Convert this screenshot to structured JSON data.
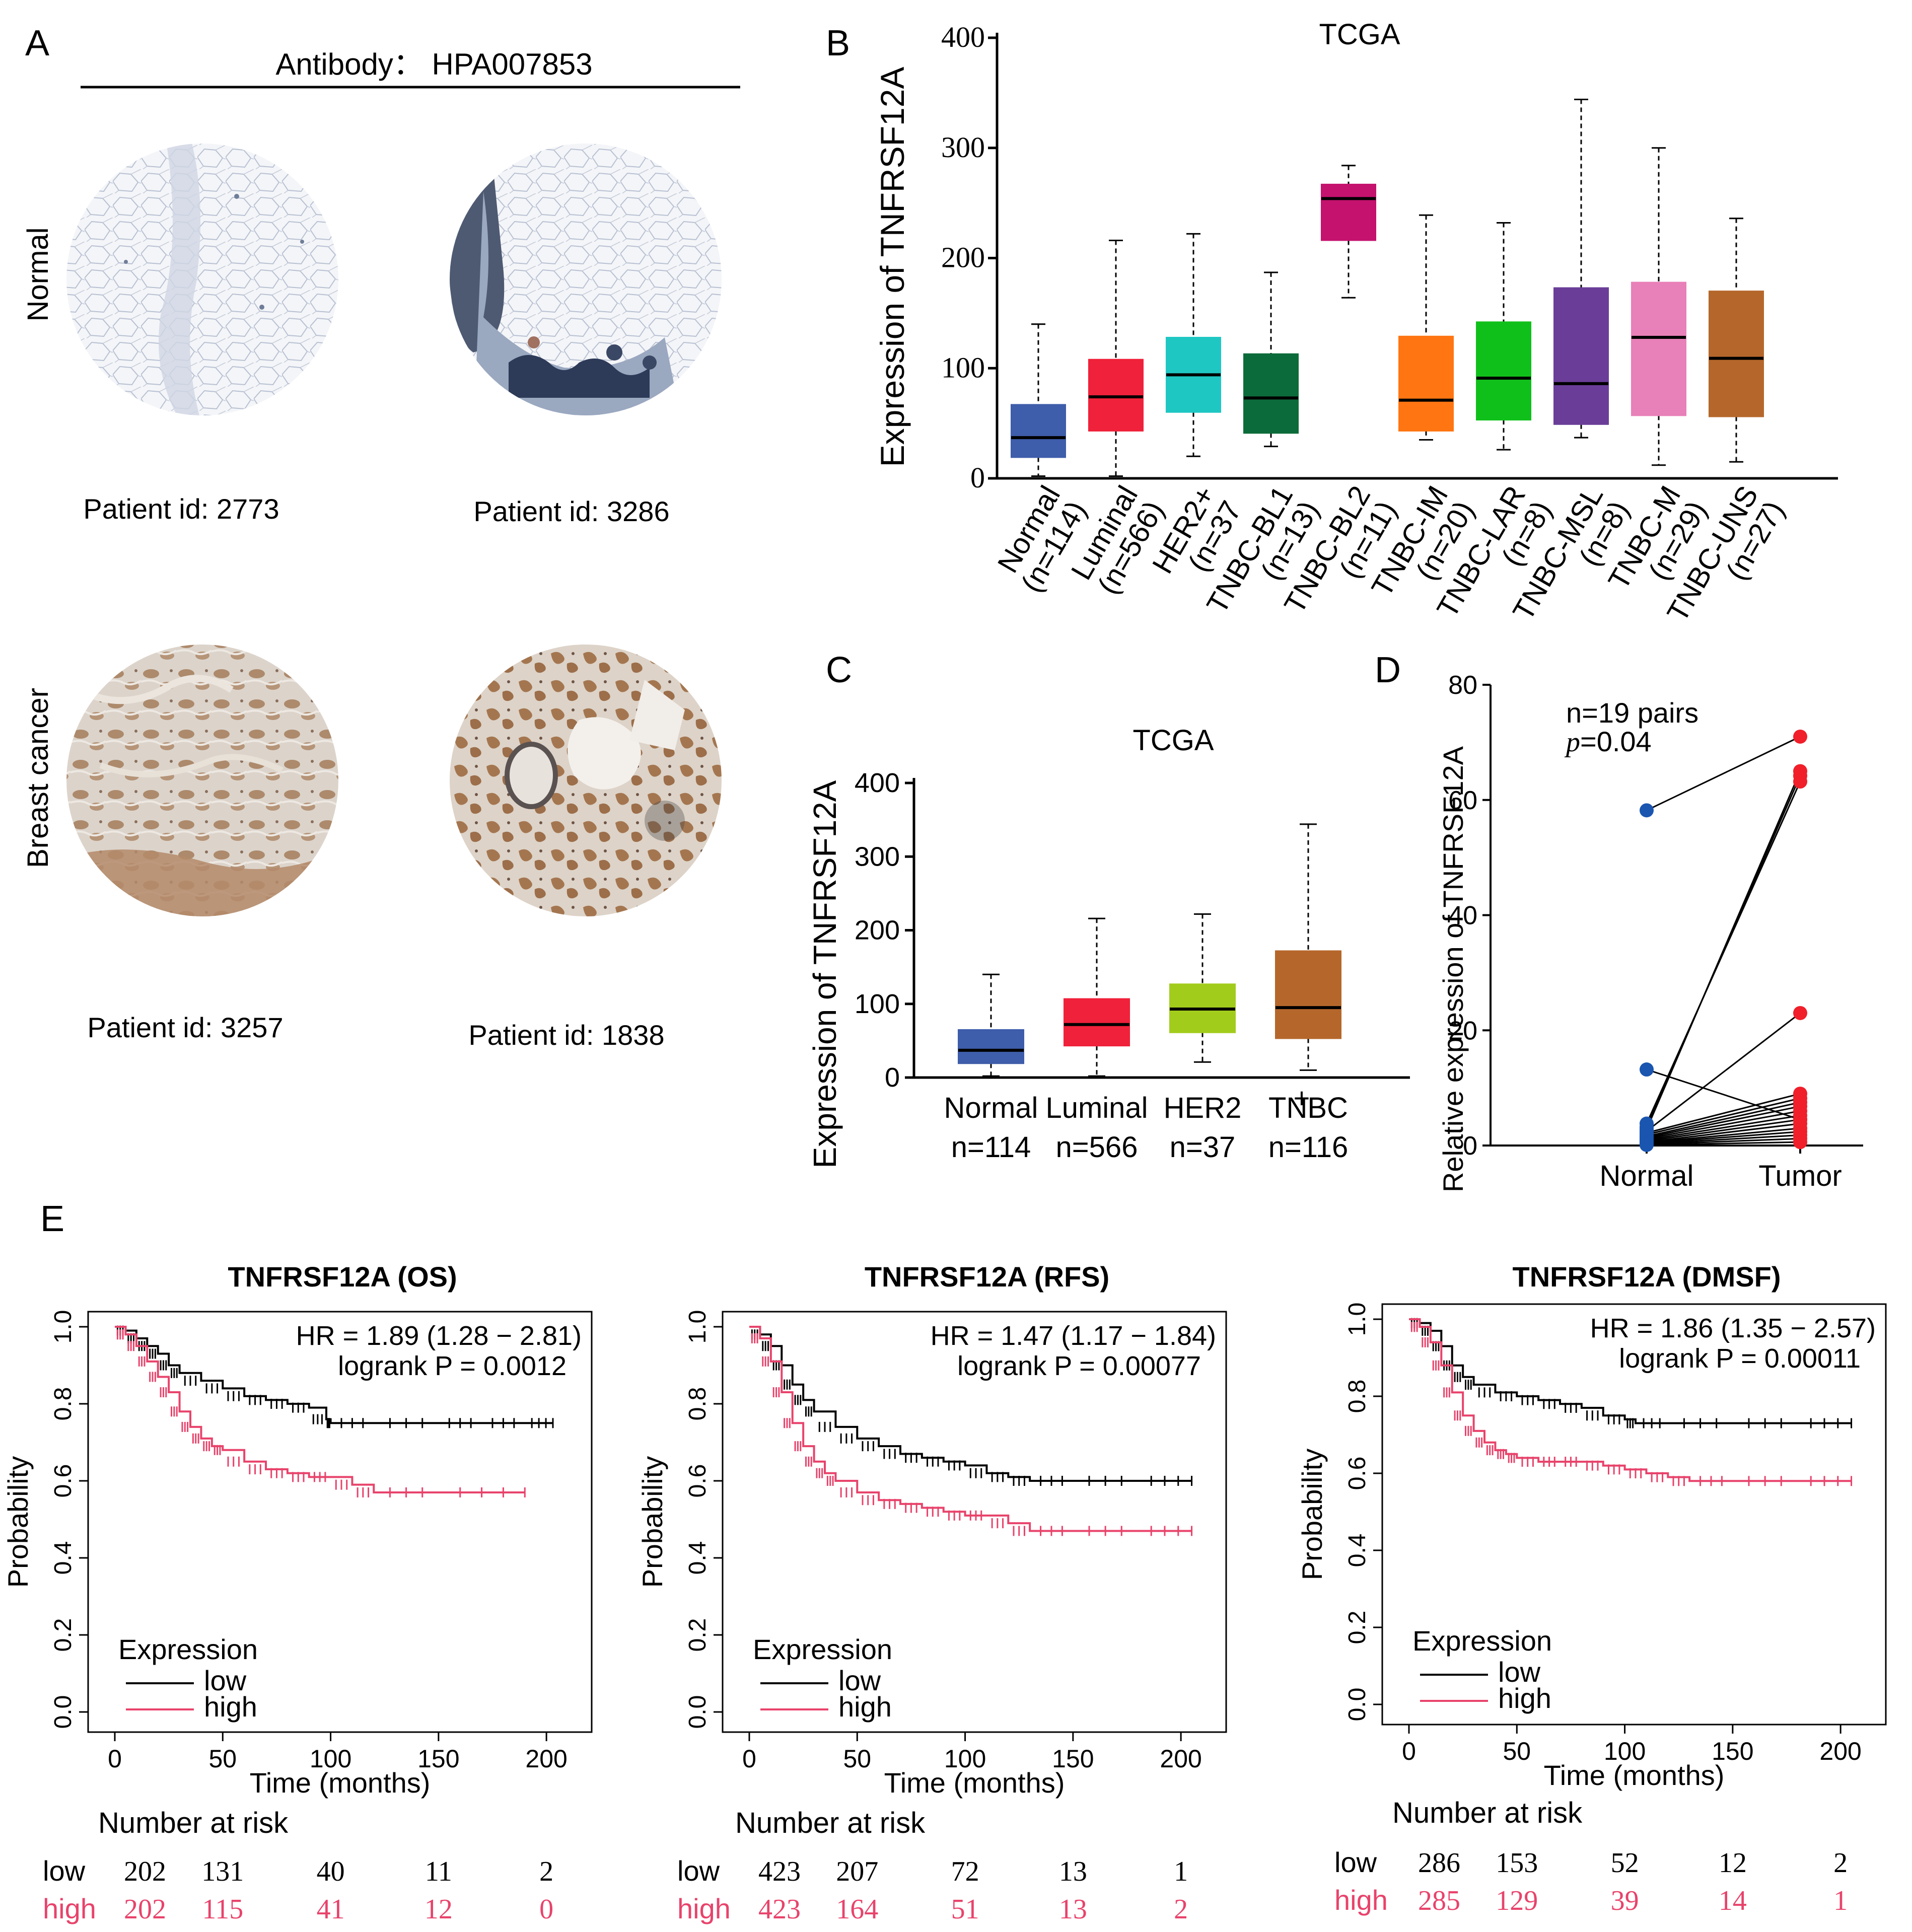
{
  "panels": {
    "A": {
      "label": "A",
      "antibody": "Antibody： HPA007853",
      "rows": [
        "Normal",
        "Breast cancer"
      ],
      "cores": [
        {
          "patient": "Patient id: 2773",
          "tissue": "normal-fat"
        },
        {
          "patient": "Patient id: 3286",
          "tissue": "normal-glands"
        },
        {
          "patient": "Patient id: 3257",
          "tissue": "tumor-1"
        },
        {
          "patient": "Patient id: 1838",
          "tissue": "tumor-2"
        }
      ]
    },
    "E": {
      "label": "E"
    }
  },
  "palette": {
    "normal": "#3E5DAA",
    "luminal": "#F0213A",
    "her2p": "#1FC7C3",
    "bl1": "#0C6B3A",
    "bl2": "#C4126E",
    "im": "#FF7511",
    "lar": "#10C01A",
    "msl": "#6A3E98",
    "m": "#E880B9",
    "uns": "#B5672B",
    "her2": "#A2CC1C",
    "tnbc": "#B5672B",
    "km_high": "#E8436B",
    "km_low": "#000000"
  },
  "chart_data": [
    {
      "id": "B",
      "label": "B",
      "type": "boxplot",
      "title": "TCGA",
      "ylabel": "Expression of  TNFRSF12A",
      "ylim": [
        0,
        400
      ],
      "yticks": [
        0,
        100,
        200,
        300,
        400
      ],
      "categories": [
        "Normal\n(n=114)",
        "Luminal\n(n=566)",
        "HER2+\n(n=37",
        "TNBC-BL1\n(n=13)",
        "TNBC-BL2\n(n=11)",
        "TNBC-IM\n(n=20)",
        "TNBC-LAR\n(n=8)",
        "TNBC-MSL\n(n=8)",
        "TNBC-M\n(n=29)",
        "TNBC-UNS\n(n=27)"
      ],
      "colors": [
        "normal",
        "luminal",
        "her2p",
        "bl1",
        "bl2",
        "im",
        "lar",
        "msl",
        "m",
        "uns"
      ],
      "boxes": [
        {
          "min": 2,
          "q1": 19,
          "median": 37,
          "q3": 67,
          "max": 140
        },
        {
          "min": 2,
          "q1": 43,
          "median": 74,
          "q3": 108,
          "max": 216
        },
        {
          "min": 20,
          "q1": 60,
          "median": 94,
          "q3": 128,
          "max": 222
        },
        {
          "min": 29,
          "q1": 41,
          "median": 73,
          "q3": 113,
          "max": 187
        },
        {
          "min": 164,
          "q1": 216,
          "median": 254,
          "q3": 267,
          "max": 284
        },
        {
          "min": 35,
          "q1": 43,
          "median": 71,
          "q3": 129,
          "max": 239
        },
        {
          "min": 26,
          "q1": 53,
          "median": 91,
          "q3": 142,
          "max": 232
        },
        {
          "min": 37,
          "q1": 49,
          "median": 86,
          "q3": 173,
          "max": 344
        },
        {
          "min": 12,
          "q1": 57,
          "median": 128,
          "q3": 178,
          "max": 300
        },
        {
          "min": 15,
          "q1": 56,
          "median": 109,
          "q3": 170,
          "max": 236
        }
      ]
    },
    {
      "id": "C",
      "label": "C",
      "type": "boxplot",
      "title": "TCGA",
      "ylabel": "Expression of  TNFRSF12A",
      "ylim": [
        0,
        400
      ],
      "yticks": [
        0,
        100,
        200,
        300,
        400
      ],
      "categories": [
        "Normal\nn=114",
        "Luminal\nn=566",
        "HER2\nn=37",
        "TNBC\nn=116"
      ],
      "colors": [
        "normal",
        "luminal",
        "her2",
        "tnbc"
      ],
      "plus_sign": "+",
      "boxes": [
        {
          "min": 2,
          "q1": 19,
          "median": 37,
          "q3": 65,
          "max": 140
        },
        {
          "min": 2,
          "q1": 43,
          "median": 72,
          "q3": 107,
          "max": 216
        },
        {
          "min": 21,
          "q1": 61,
          "median": 93,
          "q3": 127,
          "max": 222
        },
        {
          "min": 10,
          "q1": 53,
          "median": 95,
          "q3": 172,
          "max": 344
        }
      ]
    },
    {
      "id": "D",
      "label": "D",
      "type": "paired-scatter",
      "ylabel": "Relative expression of TNFRSF12A",
      "ylim": [
        0,
        80
      ],
      "yticks": [
        0,
        20,
        40,
        60,
        80
      ],
      "categories": [
        "Normal",
        "Tumor"
      ],
      "annotation": "n=19 pairs",
      "p_label": "p",
      "p_value": "=0.04",
      "pairs": [
        [
          58.2,
          71
        ],
        [
          13.2,
          4.5
        ],
        [
          3.8,
          63.2
        ],
        [
          3.2,
          64.2
        ],
        [
          2.8,
          65
        ],
        [
          2.5,
          23
        ],
        [
          2.2,
          9
        ],
        [
          1.9,
          8.2
        ],
        [
          1.6,
          7.5
        ],
        [
          1.4,
          6.8
        ],
        [
          1.2,
          6
        ],
        [
          1.0,
          5.2
        ],
        [
          0.8,
          4.5
        ],
        [
          0.6,
          3.8
        ],
        [
          0.5,
          3
        ],
        [
          0.4,
          2.4
        ],
        [
          0.3,
          1.8
        ],
        [
          0.2,
          1.2
        ],
        [
          0.1,
          0.6
        ]
      ]
    },
    {
      "id": "E1",
      "type": "kaplan-meier",
      "title": "TNFRSF12A (OS)",
      "hr_text": "HR = 1.89 (1.28 − 2.81)",
      "p_text": "logrank P = 0.0012",
      "xlabel": "Time (months)",
      "ylabel": "Probability",
      "xlim": [
        0,
        210
      ],
      "ylim": [
        0,
        1
      ],
      "xticks": [
        0,
        50,
        100,
        150,
        200
      ],
      "yticks": [
        0.0,
        0.2,
        0.4,
        0.6,
        0.8,
        1.0
      ],
      "legend_title": "Expression",
      "legend": [
        "low",
        "high"
      ],
      "series": [
        {
          "name": "low",
          "points": [
            [
              0,
              1
            ],
            [
              5,
              0.99
            ],
            [
              10,
              0.97
            ],
            [
              15,
              0.95
            ],
            [
              20,
              0.93
            ],
            [
              25,
              0.9
            ],
            [
              30,
              0.88
            ],
            [
              40,
              0.86
            ],
            [
              50,
              0.84
            ],
            [
              60,
              0.82
            ],
            [
              70,
              0.81
            ],
            [
              80,
              0.8
            ],
            [
              90,
              0.79
            ],
            [
              98,
              0.76
            ],
            [
              100,
              0.75
            ],
            [
              120,
              0.75
            ],
            [
              150,
              0.75
            ],
            [
              170,
              0.75
            ],
            [
              190,
              0.75
            ],
            [
              203,
              0.75
            ]
          ]
        },
        {
          "name": "high",
          "points": [
            [
              0,
              1
            ],
            [
              5,
              0.98
            ],
            [
              10,
              0.95
            ],
            [
              15,
              0.91
            ],
            [
              20,
              0.87
            ],
            [
              25,
              0.83
            ],
            [
              30,
              0.78
            ],
            [
              35,
              0.74
            ],
            [
              40,
              0.71
            ],
            [
              45,
              0.69
            ],
            [
              50,
              0.68
            ],
            [
              60,
              0.65
            ],
            [
              70,
              0.63
            ],
            [
              80,
              0.62
            ],
            [
              90,
              0.61
            ],
            [
              100,
              0.61
            ],
            [
              110,
              0.59
            ],
            [
              120,
              0.57
            ],
            [
              150,
              0.57
            ],
            [
              190,
              0.57
            ]
          ]
        }
      ],
      "risk_title": "Number at risk",
      "risk": {
        "low_label": "low",
        "high_label": "high",
        "low": [
          "202",
          "131",
          "40",
          "11",
          "2"
        ],
        "high": [
          "202",
          "115",
          "41",
          "12",
          "0"
        ]
      }
    },
    {
      "id": "E2",
      "type": "kaplan-meier",
      "title": "TNFRSF12A (RFS)",
      "hr_text": "HR = 1.47 (1.17 − 1.84)",
      "p_text": "logrank P = 0.00077",
      "xlabel": "Time (months)",
      "ylabel": "Probability",
      "xlim": [
        0,
        210
      ],
      "ylim": [
        0,
        1
      ],
      "xticks": [
        0,
        50,
        100,
        150,
        200
      ],
      "yticks": [
        0.0,
        0.2,
        0.4,
        0.6,
        0.8,
        1.0
      ],
      "legend_title": "Expression",
      "legend": [
        "low",
        "high"
      ],
      "series": [
        {
          "name": "low",
          "points": [
            [
              0,
              1
            ],
            [
              5,
              0.98
            ],
            [
              10,
              0.95
            ],
            [
              15,
              0.9
            ],
            [
              20,
              0.85
            ],
            [
              25,
              0.81
            ],
            [
              30,
              0.78
            ],
            [
              40,
              0.74
            ],
            [
              50,
              0.71
            ],
            [
              60,
              0.69
            ],
            [
              70,
              0.67
            ],
            [
              80,
              0.66
            ],
            [
              90,
              0.65
            ],
            [
              100,
              0.64
            ],
            [
              110,
              0.62
            ],
            [
              120,
              0.61
            ],
            [
              130,
              0.6
            ],
            [
              150,
              0.6
            ],
            [
              180,
              0.6
            ],
            [
              205,
              0.6
            ]
          ]
        },
        {
          "name": "high",
          "points": [
            [
              0,
              1
            ],
            [
              5,
              0.97
            ],
            [
              10,
              0.91
            ],
            [
              15,
              0.83
            ],
            [
              20,
              0.75
            ],
            [
              25,
              0.69
            ],
            [
              30,
              0.65
            ],
            [
              35,
              0.62
            ],
            [
              40,
              0.6
            ],
            [
              50,
              0.57
            ],
            [
              60,
              0.55
            ],
            [
              70,
              0.54
            ],
            [
              80,
              0.53
            ],
            [
              90,
              0.52
            ],
            [
              100,
              0.51
            ],
            [
              110,
              0.51
            ],
            [
              120,
              0.49
            ],
            [
              130,
              0.47
            ],
            [
              150,
              0.47
            ],
            [
              180,
              0.47
            ],
            [
              205,
              0.47
            ]
          ]
        }
      ],
      "risk_title": "Number at risk",
      "risk": {
        "low_label": "low",
        "high_label": "high",
        "low": [
          "423",
          "207",
          "72",
          "13",
          "1"
        ],
        "high": [
          "423",
          "164",
          "51",
          "13",
          "2"
        ]
      }
    },
    {
      "id": "E3",
      "type": "kaplan-meier",
      "title": "TNFRSF12A (DMSF)",
      "hr_text": "HR = 1.86 (1.35 − 2.57)",
      "p_text": "logrank P = 0.00011",
      "xlabel": "Time (months)",
      "ylabel": "Probability",
      "xlim": [
        0,
        210
      ],
      "ylim": [
        0,
        1
      ],
      "xticks": [
        0,
        50,
        100,
        150,
        200
      ],
      "yticks": [
        0.0,
        0.2,
        0.4,
        0.6,
        0.8,
        1.0
      ],
      "legend_title": "Expression",
      "legend": [
        "low",
        "high"
      ],
      "series": [
        {
          "name": "low",
          "points": [
            [
              0,
              1
            ],
            [
              5,
              0.99
            ],
            [
              10,
              0.97
            ],
            [
              15,
              0.93
            ],
            [
              20,
              0.88
            ],
            [
              25,
              0.85
            ],
            [
              30,
              0.83
            ],
            [
              40,
              0.81
            ],
            [
              50,
              0.8
            ],
            [
              60,
              0.79
            ],
            [
              70,
              0.78
            ],
            [
              80,
              0.77
            ],
            [
              90,
              0.75
            ],
            [
              100,
              0.74
            ],
            [
              105,
              0.73
            ],
            [
              120,
              0.73
            ],
            [
              150,
              0.73
            ],
            [
              180,
              0.73
            ],
            [
              205,
              0.73
            ]
          ]
        },
        {
          "name": "high",
          "points": [
            [
              0,
              1
            ],
            [
              5,
              0.98
            ],
            [
              10,
              0.94
            ],
            [
              15,
              0.88
            ],
            [
              20,
              0.81
            ],
            [
              25,
              0.75
            ],
            [
              30,
              0.71
            ],
            [
              35,
              0.68
            ],
            [
              40,
              0.66
            ],
            [
              45,
              0.65
            ],
            [
              50,
              0.64
            ],
            [
              60,
              0.63
            ],
            [
              70,
              0.63
            ],
            [
              80,
              0.63
            ],
            [
              90,
              0.62
            ],
            [
              100,
              0.61
            ],
            [
              110,
              0.6
            ],
            [
              120,
              0.59
            ],
            [
              130,
              0.58
            ],
            [
              150,
              0.58
            ],
            [
              180,
              0.58
            ],
            [
              205,
              0.58
            ]
          ]
        }
      ],
      "risk_title": "Number at risk",
      "risk": {
        "low_label": "low",
        "high_label": "high",
        "low": [
          "286",
          "153",
          "52",
          "12",
          "2"
        ],
        "high": [
          "285",
          "129",
          "39",
          "14",
          "1"
        ]
      }
    }
  ]
}
